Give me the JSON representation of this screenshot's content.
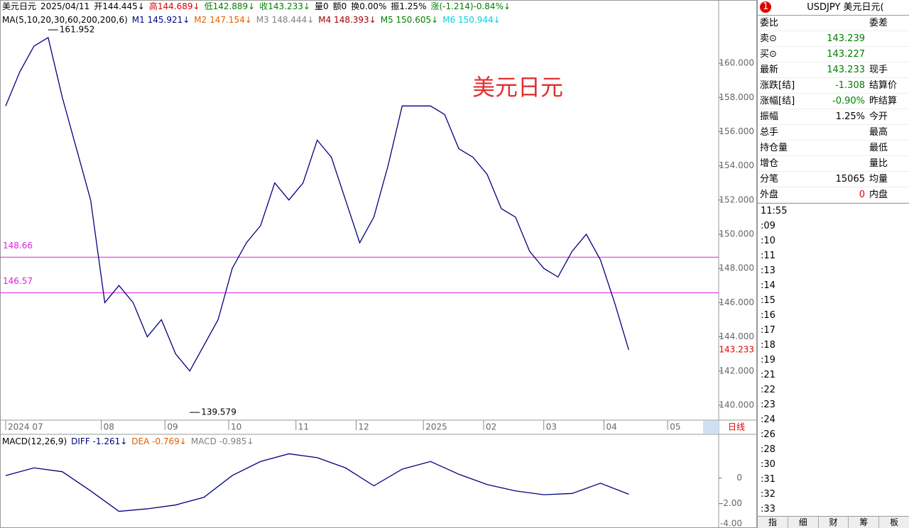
{
  "header": {
    "items": [
      {
        "text": "美元日元",
        "color": "#000000"
      },
      {
        "text": "2025/04/11",
        "color": "#000000"
      },
      {
        "text": "开144.445↓",
        "color": "#000000"
      },
      {
        "text": "高144.689↓",
        "color": "#e00000"
      },
      {
        "text": "低142.889↓",
        "color": "#008000"
      },
      {
        "text": "收143.233↓",
        "color": "#008000"
      },
      {
        "text": "量0",
        "color": "#000000"
      },
      {
        "text": "额0",
        "color": "#000000"
      },
      {
        "text": "换0.00%",
        "color": "#000000"
      },
      {
        "text": "振1.25%",
        "color": "#000000"
      },
      {
        "text": "涨(-1.214)-0.84%↓",
        "color": "#008000"
      }
    ],
    "ma": [
      {
        "text": "MA(5,10,20,30,60,200,200,6)",
        "color": "#000000"
      },
      {
        "text": "M1 145.921↓",
        "color": "#000080"
      },
      {
        "text": "M2 147.154↓",
        "color": "#e06000"
      },
      {
        "text": "M3 148.444↓",
        "color": "#808080"
      },
      {
        "text": "M4 148.393↓",
        "color": "#a00000"
      },
      {
        "text": "M5 150.605↓",
        "color": "#008000"
      },
      {
        "text": "M6 150.944↓",
        "color": "#00d0e0"
      }
    ]
  },
  "chart_data": {
    "type": "line",
    "watermark": "美元日元",
    "period": "日线",
    "series": [
      {
        "name": "收",
        "color": "#000080",
        "values": [
          157.5,
          159.5,
          161,
          161.5,
          158,
          155,
          152,
          146,
          147,
          146,
          144,
          145,
          143,
          142,
          143.5,
          145,
          148,
          149.5,
          150.5,
          153,
          152,
          153,
          155.5,
          154.5,
          152,
          149.5,
          151,
          154,
          157.5,
          157.5,
          157.5,
          157,
          155,
          154.5,
          153.5,
          151.5,
          151,
          149,
          148,
          147.5,
          149,
          150,
          148.5,
          146,
          143.233
        ]
      }
    ],
    "ylim": [
      139.21,
      163.49
    ],
    "yticks": [
      {
        "value": 140,
        "label": "140.000"
      },
      {
        "value": 142,
        "label": "142.000"
      },
      {
        "value": 144,
        "label": "144.000"
      },
      {
        "value": 146,
        "label": "146.000"
      },
      {
        "value": 148,
        "label": "148.000"
      },
      {
        "value": 150,
        "label": "150.000"
      },
      {
        "value": 152,
        "label": "152.000"
      },
      {
        "value": 154,
        "label": "154.000"
      },
      {
        "value": 156,
        "label": "156.000"
      },
      {
        "value": 158,
        "label": "158.000"
      },
      {
        "value": 160,
        "label": "160.000"
      }
    ],
    "xlim": [
      -0.25,
      50.35
    ],
    "xticks": [
      {
        "value": 0,
        "label": "2024 07"
      },
      {
        "value": 6.75,
        "label": "08"
      },
      {
        "value": 11.25,
        "label": "09"
      },
      {
        "value": 15.75,
        "label": "10"
      },
      {
        "value": 20.5,
        "label": "11"
      },
      {
        "value": 24.75,
        "label": "12"
      },
      {
        "value": 29.5,
        "label": "2025"
      },
      {
        "value": 33.75,
        "label": "02"
      },
      {
        "value": 38,
        "label": "03"
      },
      {
        "value": 42.25,
        "label": "04"
      },
      {
        "value": 46.75,
        "label": "05"
      }
    ],
    "levels": [
      {
        "value": 148.66,
        "label": "148.66",
        "color": "#e020e0"
      },
      {
        "value": 146.57,
        "label": "146.57",
        "color": "#e020e0"
      }
    ],
    "extremes": [
      {
        "x": 3,
        "value": 161.952,
        "label": "161.952"
      },
      {
        "x": 13,
        "value": 139.579,
        "label": "139.579"
      }
    ],
    "last": {
      "value": 143.233,
      "label": "143.233",
      "color": "#e00000"
    }
  },
  "macd_data": {
    "type": "line",
    "legend": [
      {
        "text": "MACD(12,26,9)",
        "color": "#000000"
      },
      {
        "text": "DIFF -1.261↓",
        "color": "#000080"
      },
      {
        "text": "DEA -0.769↓",
        "color": "#e06000"
      },
      {
        "text": "MACD -0.985↓",
        "color": "#808080"
      }
    ],
    "x": [
      0,
      2,
      4,
      6,
      8,
      10,
      12,
      14,
      16,
      18,
      20,
      22,
      24,
      26,
      28,
      30,
      32,
      34,
      36,
      38,
      40,
      42,
      44
    ],
    "series": [
      {
        "name": "DIFF",
        "color": "#000080",
        "values": [
          0.2,
          0.8,
          0.5,
          -1.0,
          -2.6,
          -2.4,
          -2.1,
          -1.5,
          0.2,
          1.3,
          1.9,
          1.6,
          0.8,
          -0.6,
          0.7,
          1.3,
          0.3,
          -0.5,
          -1.0,
          -1.3,
          -1.2,
          -0.4,
          -1.26
        ]
      }
    ],
    "ylim": [
      -3.9,
      3.2
    ],
    "yticks": [
      {
        "value": 0,
        "label": "0"
      },
      {
        "value": -2,
        "label": "-2.00"
      },
      {
        "value": -4,
        "label": "-4.00"
      }
    ]
  },
  "quote": {
    "badge": "1",
    "symbol": "USDJPY 美元日元(",
    "rows": [
      [
        "委比",
        "",
        "委差"
      ],
      [
        "卖⊙",
        "143.239",
        ""
      ],
      [
        "买⊙",
        "143.227",
        ""
      ],
      [
        "最新",
        "143.233",
        "现手"
      ],
      [
        "涨跌[结]",
        "-1.308",
        "结算价"
      ],
      [
        "涨幅[结]",
        "-0.90%",
        "昨结算"
      ],
      [
        "振幅",
        "1.25%",
        "今开"
      ],
      [
        "总手",
        "",
        "最高"
      ],
      [
        "持仓量",
        "",
        "最低"
      ],
      [
        "增仓",
        "",
        "量比"
      ],
      [
        "分笔",
        "15065",
        "均量"
      ],
      [
        "外盘",
        "0",
        "内盘"
      ]
    ],
    "value_colors": [
      "#000000",
      "#008000",
      "#008000",
      "#008000",
      "#008000",
      "#008000",
      "#000000",
      "#000000",
      "#000000",
      "#000000",
      "#000000",
      "#e00000"
    ],
    "times": [
      "11:55",
      ":09",
      ":10",
      ":11",
      ":13",
      ":14",
      ":15",
      ":16",
      ":17",
      ":18",
      ":19",
      ":21",
      ":22",
      ":23",
      ":24",
      ":26",
      ":28",
      ":30",
      ":31",
      ":32",
      ":33"
    ],
    "tabs": [
      "指",
      "细",
      "财",
      "筹",
      "板"
    ]
  }
}
